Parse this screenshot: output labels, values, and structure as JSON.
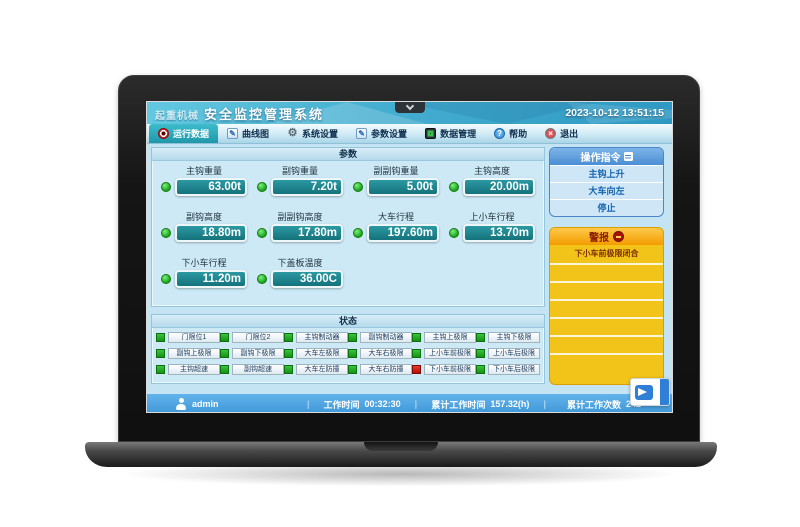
{
  "window": {
    "logo": "起重机械",
    "title": "安全监控管理系统",
    "datetime": "2023-10-12 13:51:15"
  },
  "tabs": [
    {
      "label": "运行数据",
      "icon": "record-icon",
      "active": true
    },
    {
      "label": "曲线图",
      "icon": "curve-icon",
      "active": false
    },
    {
      "label": "系统设置",
      "icon": "gear-icon",
      "active": false
    },
    {
      "label": "参数设置",
      "icon": "edit-icon",
      "active": false
    },
    {
      "label": "数据管理",
      "icon": "monitor-icon",
      "active": false
    },
    {
      "label": "帮助",
      "icon": "help-icon",
      "active": false
    },
    {
      "label": "退出",
      "icon": "exit-icon",
      "active": false
    }
  ],
  "parameters": {
    "title": "参数",
    "items": [
      {
        "label": "主钩重量",
        "value": "63.00t",
        "state": "green"
      },
      {
        "label": "副钩重量",
        "value": "7.20t",
        "state": "green"
      },
      {
        "label": "副副钩重量",
        "value": "5.00t",
        "state": "green"
      },
      {
        "label": "主钩高度",
        "value": "20.00m",
        "state": "green"
      },
      {
        "label": "副钩高度",
        "value": "18.80m",
        "state": "green"
      },
      {
        "label": "副副钩高度",
        "value": "17.80m",
        "state": "green"
      },
      {
        "label": "大车行程",
        "value": "197.60m",
        "state": "green"
      },
      {
        "label": "上小车行程",
        "value": "13.70m",
        "state": "green"
      },
      {
        "label": "下小车行程",
        "value": "11.20m",
        "state": "green"
      },
      {
        "label": "下盖板温度",
        "value": "36.00C",
        "state": "green"
      }
    ]
  },
  "status": {
    "title": "状态",
    "items": [
      {
        "label": "门限位1",
        "state": "green"
      },
      {
        "label": "门限位2",
        "state": "green"
      },
      {
        "label": "主钩制动器",
        "state": "green"
      },
      {
        "label": "副钩制动器",
        "state": "green"
      },
      {
        "label": "主钩上极限",
        "state": "green"
      },
      {
        "label": "主钩下极限",
        "state": "green"
      },
      {
        "label": "副钩上极限",
        "state": "green"
      },
      {
        "label": "副钩下极限",
        "state": "green"
      },
      {
        "label": "大车左极限",
        "state": "green"
      },
      {
        "label": "大车右极限",
        "state": "green"
      },
      {
        "label": "上小车前极限",
        "state": "green"
      },
      {
        "label": "上小车后极限",
        "state": "green"
      },
      {
        "label": "主钩超速",
        "state": "green"
      },
      {
        "label": "副钩超速",
        "state": "green"
      },
      {
        "label": "大车左防撞",
        "state": "green"
      },
      {
        "label": "大车右防撞",
        "state": "green"
      },
      {
        "label": "下小车前极限",
        "state": "red"
      },
      {
        "label": "下小车后极限",
        "state": "green"
      }
    ]
  },
  "commands": {
    "title": "操作指令",
    "items": [
      "主钩上升",
      "大车向左",
      "停止"
    ]
  },
  "alarms": {
    "title": "警报",
    "items": [
      "下小车前极限闭合",
      "",
      "",
      "",
      "",
      "",
      ""
    ]
  },
  "statusbar": {
    "user": "admin",
    "work_time_label": "工作时间",
    "work_time": "00:32:30",
    "total_time_label": "累计工作时间",
    "total_time": "157.32(h)",
    "total_count_label": "累计工作次数",
    "total_count": "242"
  },
  "colors": {
    "titlebar_teal": "#3fa8cc",
    "active_tab": "#1f97aa",
    "value_box": "#15727b",
    "led_green": "#1da31d",
    "led_red": "#b80f00",
    "command_header_blue": "#4a8ed4",
    "alarm_gold": "#f2c318",
    "alarm_header_orange": "#f29c00",
    "statusbar_blue": "#3e97d8"
  }
}
